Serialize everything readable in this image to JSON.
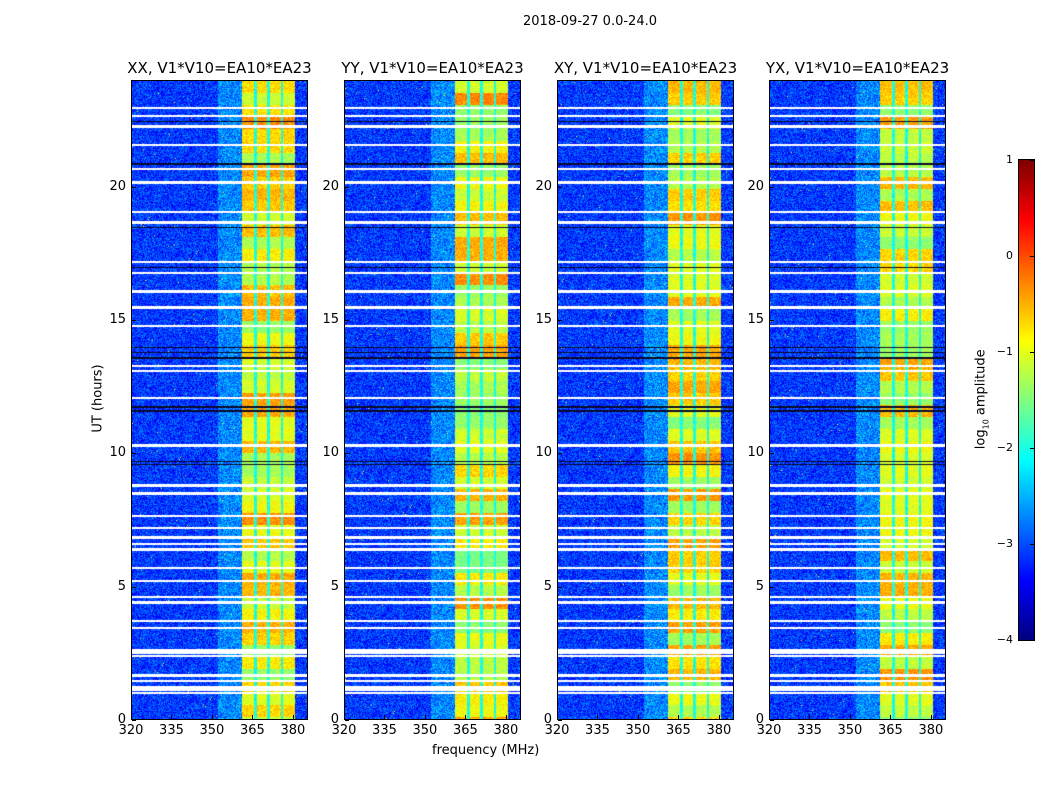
{
  "chart_data": {
    "type": "heatmap",
    "title": "2018-09-27 0.0-24.0",
    "xlabel": "frequency (MHz)",
    "ylabel": "UT (hours)",
    "xlim": [
      320,
      385.6
    ],
    "ylim": [
      0,
      24
    ],
    "xticks": [
      "320",
      "335",
      "350",
      "365",
      "380"
    ],
    "xtick_values": [
      320,
      335,
      350,
      365,
      380
    ],
    "yticks": [
      "0",
      "5",
      "10",
      "15",
      "20"
    ],
    "ytick_values": [
      0,
      5,
      10,
      15,
      20
    ],
    "panels": [
      {
        "title": "XX, V1*V10=EA10*EA23",
        "band_scale": 1.0
      },
      {
        "title": "YY, V1*V10=EA10*EA23",
        "band_scale": 1.05
      },
      {
        "title": "XY, V1*V10=EA10*EA23",
        "band_scale": 0.95
      },
      {
        "title": "YX, V1*V10=EA10*EA23",
        "band_scale": 0.92
      }
    ],
    "background_level": -3.1,
    "band_range_mhz": [
      361,
      381
    ],
    "band_level": -0.9,
    "band_dividers_mhz": [
      366,
      371,
      376
    ],
    "flagged_hours_white": [
      1.0,
      1.1,
      1.2,
      1.45,
      1.65,
      2.4,
      2.5,
      2.6,
      3.45,
      3.7,
      4.4,
      4.6,
      5.2,
      5.7,
      6.4,
      6.6,
      6.85,
      7.2,
      7.65,
      8.5,
      8.8,
      10.3,
      12.1,
      13.1,
      13.3,
      14.8,
      15.5,
      16.1,
      16.8,
      17.2,
      18.7,
      19.1,
      20.2,
      20.7,
      21.6,
      22.3,
      22.7,
      23.0
    ],
    "flagged_hours_black": [
      9.6,
      9.7,
      11.6,
      11.75,
      13.6,
      13.8,
      14.0,
      17.0,
      18.5,
      20.9,
      22.5
    ],
    "colorbar": {
      "label_main": "log",
      "label_sub": "10",
      "label_rest": " amplitude",
      "range": [
        -4,
        1
      ],
      "ticks": [
        "1",
        "0",
        "−1",
        "−2",
        "−3",
        "−4"
      ],
      "tick_values": [
        1,
        0,
        -1,
        -2,
        -3,
        -4
      ],
      "colormap": "jet"
    }
  }
}
